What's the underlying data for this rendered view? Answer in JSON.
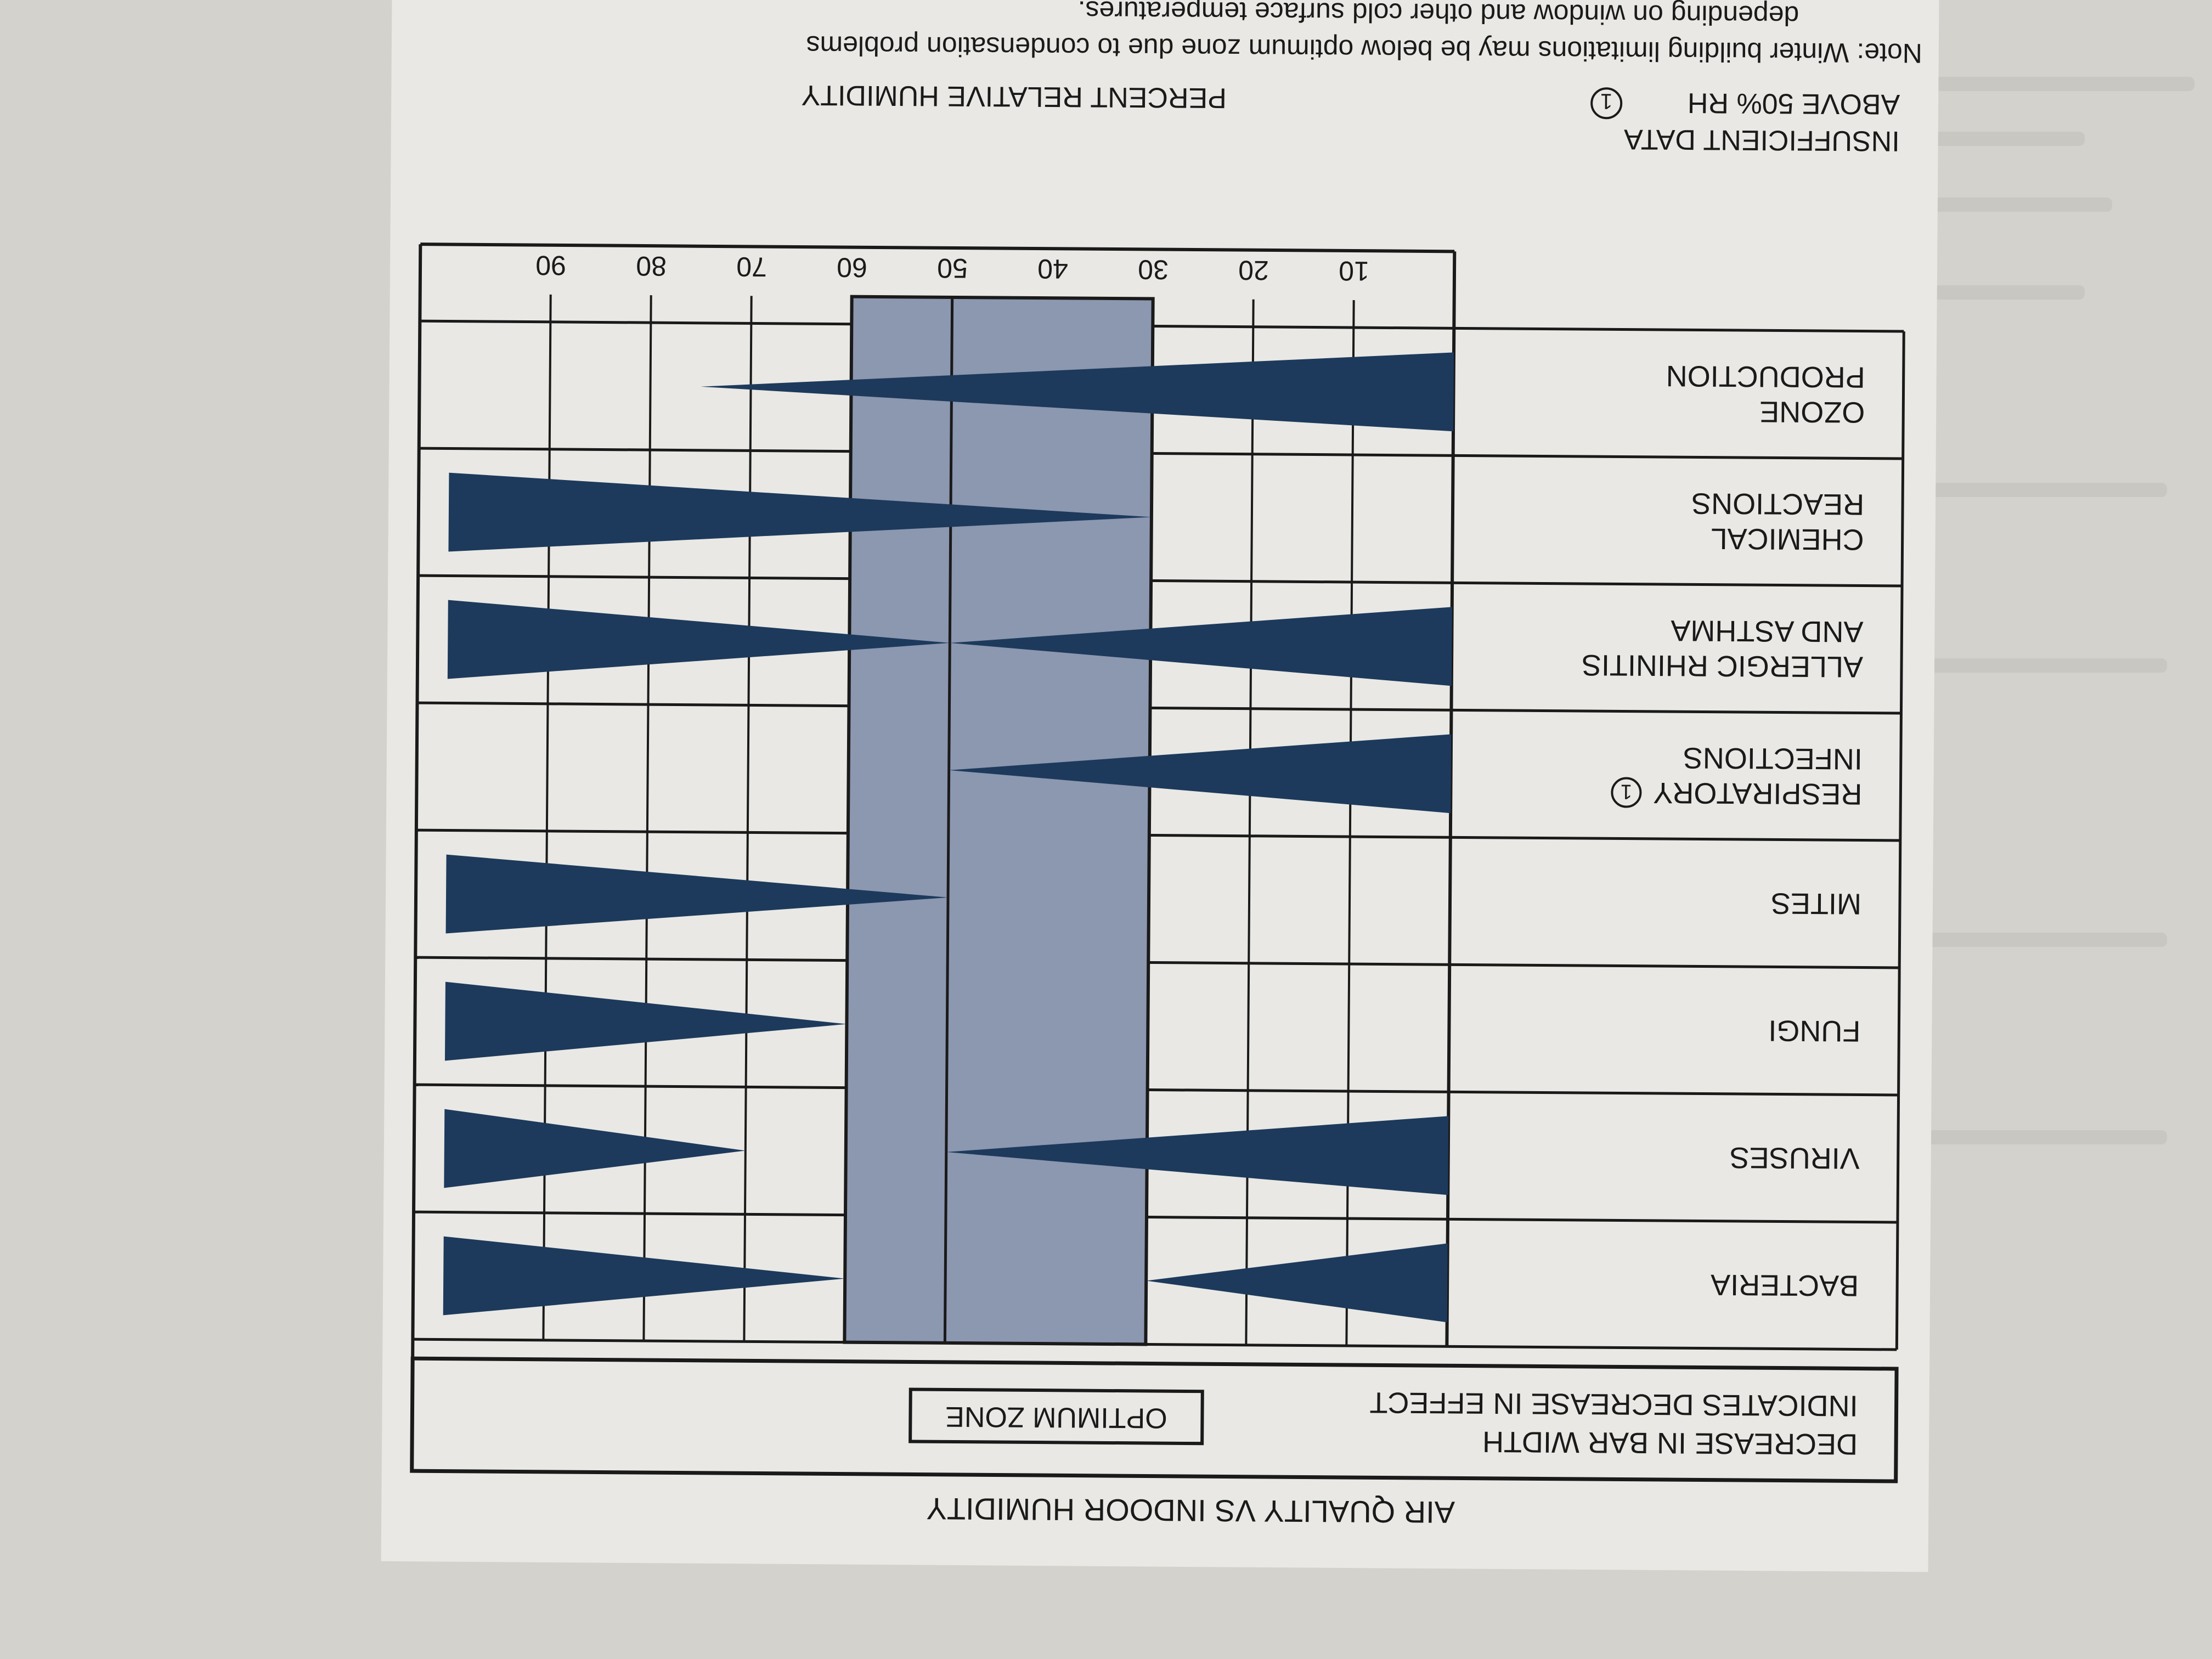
{
  "title": "AIR QUALITY VS INDOOR HUMIDITY",
  "legend": {
    "decrease_line1": "DECREASE IN BAR WIDTH",
    "decrease_line2": "INDICATES DECREASE IN EFFECT",
    "optimum_label": "OPTIMUM ZONE"
  },
  "note": {
    "line1": "Note: Winter building limitations may be below optimum zone due to condensation problems",
    "line2": "depending on window and other cold surface temperatures."
  },
  "axis": {
    "label": "PERCENT RELATIVE HUMIDITY",
    "ticks": [
      "10",
      "20",
      "30",
      "40",
      "50",
      "60",
      "70",
      "80",
      "90"
    ]
  },
  "footnote_marker": "1",
  "footnote_row": {
    "line1": "INSUFFICIENT DATA",
    "line2": "ABOVE 50% RH"
  },
  "chart_data": {
    "type": "bar",
    "title": "AIR QUALITY VS INDOOR HUMIDITY",
    "xlabel": "PERCENT RELATIVE HUMIDITY",
    "xlim": [
      0,
      100
    ],
    "optimum_zone": [
      30,
      60
    ],
    "rows": [
      {
        "name": "BACTERIA",
        "lines": [
          "BACTERIA"
        ],
        "wedges": [
          {
            "narrow_at": 30,
            "wide_at": 0
          },
          {
            "narrow_at": 60,
            "wide_at": 100
          }
        ]
      },
      {
        "name": "VIRUSES",
        "lines": [
          "VIRUSES"
        ],
        "wedges": [
          {
            "narrow_at": 50,
            "wide_at": 0
          },
          {
            "narrow_at": 70,
            "wide_at": 100
          }
        ]
      },
      {
        "name": "FUNGI",
        "lines": [
          "FUNGI"
        ],
        "wedges": [
          {
            "narrow_at": 60,
            "wide_at": 100
          }
        ]
      },
      {
        "name": "MITES",
        "lines": [
          "MITES"
        ],
        "wedges": [
          {
            "narrow_at": 50,
            "wide_at": 100
          }
        ]
      },
      {
        "name": "RESPIRATORY INFECTIONS",
        "lines": [
          "RESPIRATORY",
          "INFECTIONS"
        ],
        "marker": true,
        "wedges": [
          {
            "narrow_at": 50,
            "wide_at": 0
          }
        ]
      },
      {
        "name": "ALLERGIC RHINITIS AND ASTHMA",
        "lines": [
          "ALLERGIC RHINITIS",
          "AND ASTHMA"
        ],
        "wedges": [
          {
            "narrow_at": 50,
            "wide_at": 0
          },
          {
            "narrow_at": 50,
            "wide_at": 100
          }
        ]
      },
      {
        "name": "CHEMICAL REACTIONS",
        "lines": [
          "CHEMICAL",
          "REACTIONS"
        ],
        "wedges": [
          {
            "narrow_at": 30,
            "wide_at": 100
          }
        ]
      },
      {
        "name": "OZONE PRODUCTION",
        "lines": [
          "OZONE",
          "PRODUCTION"
        ],
        "wedges": [
          {
            "narrow_at": 75,
            "wide_at": 0
          }
        ]
      }
    ]
  },
  "colors": {
    "bar": "#1d3a5c",
    "optimum": "#8c97b0",
    "page": "#d3d2cc",
    "card": "#e9e8e4",
    "ink": "#1a1a1a",
    "bleed": "#b6b5ae"
  }
}
